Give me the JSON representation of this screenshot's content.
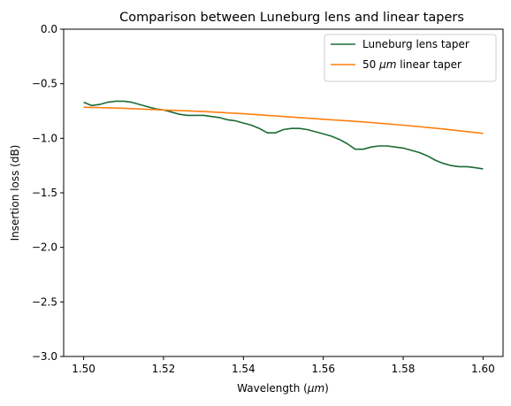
{
  "chart_data": {
    "type": "line",
    "title": "Comparison between Luneburg lens and linear tapers",
    "xlabel_parts": [
      "Wavelength (",
      "μm",
      ")"
    ],
    "ylabel": "Insertion loss (dB)",
    "xlim": [
      1.495,
      1.605
    ],
    "ylim": [
      -3.0,
      0.0
    ],
    "xticks": [
      1.5,
      1.52,
      1.54,
      1.56,
      1.58,
      1.6
    ],
    "xtick_labels": [
      "1.50",
      "1.52",
      "1.54",
      "1.56",
      "1.58",
      "1.60"
    ],
    "yticks": [
      0.0,
      -0.5,
      -1.0,
      -1.5,
      -2.0,
      -2.5,
      -3.0
    ],
    "ytick_labels": [
      "0.0",
      "−0.5",
      "−1.0",
      "−1.5",
      "−2.0",
      "−2.5",
      "−3.0"
    ],
    "grid": false,
    "legend_position": "top-right",
    "series": [
      {
        "name_parts": [
          "Luneburg lens taper"
        ],
        "color": "#1b6b35",
        "x": [
          1.5,
          1.502,
          1.504,
          1.506,
          1.508,
          1.51,
          1.512,
          1.514,
          1.516,
          1.518,
          1.52,
          1.522,
          1.524,
          1.526,
          1.528,
          1.53,
          1.532,
          1.534,
          1.536,
          1.538,
          1.54,
          1.542,
          1.544,
          1.546,
          1.548,
          1.55,
          1.552,
          1.554,
          1.556,
          1.558,
          1.56,
          1.562,
          1.564,
          1.566,
          1.568,
          1.57,
          1.572,
          1.574,
          1.576,
          1.578,
          1.58,
          1.582,
          1.584,
          1.586,
          1.588,
          1.59,
          1.592,
          1.594,
          1.596,
          1.598,
          1.6
        ],
        "y": [
          -0.67,
          -0.7,
          -0.69,
          -0.67,
          -0.66,
          -0.66,
          -0.67,
          -0.69,
          -0.71,
          -0.73,
          -0.74,
          -0.76,
          -0.78,
          -0.79,
          -0.79,
          -0.79,
          -0.8,
          -0.81,
          -0.83,
          -0.84,
          -0.86,
          -0.88,
          -0.91,
          -0.95,
          -0.95,
          -0.92,
          -0.91,
          -0.91,
          -0.92,
          -0.94,
          -0.96,
          -0.98,
          -1.01,
          -1.05,
          -1.1,
          -1.1,
          -1.08,
          -1.07,
          -1.07,
          -1.08,
          -1.09,
          -1.11,
          -1.13,
          -1.16,
          -1.2,
          -1.23,
          -1.25,
          -1.26,
          -1.26,
          -1.27,
          -1.28
        ]
      },
      {
        "name_parts": [
          "50 ",
          "μm",
          " linear taper"
        ],
        "color": "#ff7f0e",
        "x": [
          1.5,
          1.51,
          1.52,
          1.53,
          1.54,
          1.55,
          1.56,
          1.57,
          1.58,
          1.59,
          1.6
        ],
        "y": [
          -0.715,
          -0.725,
          -0.74,
          -0.755,
          -0.775,
          -0.8,
          -0.825,
          -0.85,
          -0.88,
          -0.915,
          -0.955
        ]
      }
    ]
  }
}
